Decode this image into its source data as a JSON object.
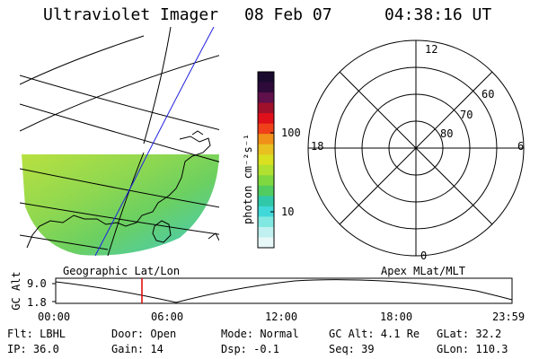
{
  "header": {
    "instrument": "Ultraviolet Imager",
    "date": "08 Feb 07",
    "time": "04:38:16 UT"
  },
  "colorbar": {
    "unit_label": "photon cm⁻²s⁻¹",
    "tick_labels": [
      "100",
      "10"
    ],
    "colors": [
      "#1a0a2e",
      "#2e0a3a",
      "#60104a",
      "#a0102a",
      "#e0101a",
      "#f0401a",
      "#f09018",
      "#e8c020",
      "#d8e020",
      "#b0e030",
      "#80d840",
      "#50cc60",
      "#30c8a8",
      "#40d8d8",
      "#80e8e0",
      "#c0f0f0",
      "#e8f8f8"
    ]
  },
  "left_panel": {
    "caption": "Geographic Lat/Lon"
  },
  "right_panel": {
    "caption": "Apex MLat/MLT",
    "mlt_labels": {
      "top": "12",
      "left": "18",
      "right": "6",
      "bottom": "0"
    },
    "lat_labels": [
      "60",
      "70",
      "80"
    ]
  },
  "altitude_strip": {
    "axis_label": "GC Alt",
    "y_ticks": [
      "9.0",
      "1.8"
    ],
    "x_ticks": [
      "00:00",
      "06:00",
      "12:00",
      "18:00",
      "23:59"
    ],
    "cursor_color": "#e00000"
  },
  "info": {
    "row1": {
      "flt": "Flt: LBHL",
      "door": "Door: Open",
      "mode": "Mode: Normal",
      "gcalt": "GC Alt: 4.1 Re",
      "glat": "GLat:  32.2"
    },
    "row2": {
      "ip": "IP: 36.0",
      "gain": "Gain: 14",
      "dsp": "Dsp:   -0.1",
      "seq": "Seq: 39",
      "glon": "GLon: 110.3"
    }
  }
}
